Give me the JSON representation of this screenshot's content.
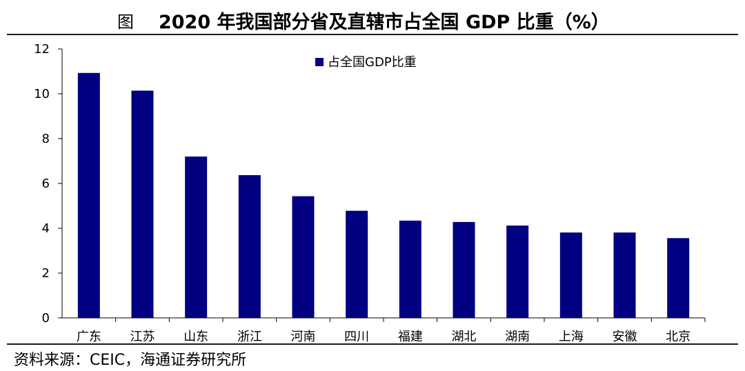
{
  "figure": {
    "prefix": "图",
    "title": "2020 年我国部分省及直辖市占全国 GDP 比重（%）"
  },
  "source": "资料来源：CEIC，海通证券研究所",
  "colors": {
    "bar": "#000080",
    "axis": "#000000"
  },
  "chart_data": {
    "type": "bar",
    "categories": [
      "广东",
      "江苏",
      "山东",
      "浙江",
      "河南",
      "四川",
      "福建",
      "湖北",
      "湖南",
      "上海",
      "安徽",
      "北京"
    ],
    "series": [
      {
        "name": "占全国GDP比重",
        "values": [
          10.93,
          10.14,
          7.2,
          6.37,
          5.43,
          4.78,
          4.34,
          4.28,
          4.12,
          3.81,
          3.81,
          3.56
        ]
      }
    ],
    "ylim": [
      0,
      12
    ],
    "yticks": [
      "0",
      "2",
      "4",
      "6",
      "8",
      "10",
      "12"
    ],
    "legend_position": "top-center",
    "grid": false
  }
}
